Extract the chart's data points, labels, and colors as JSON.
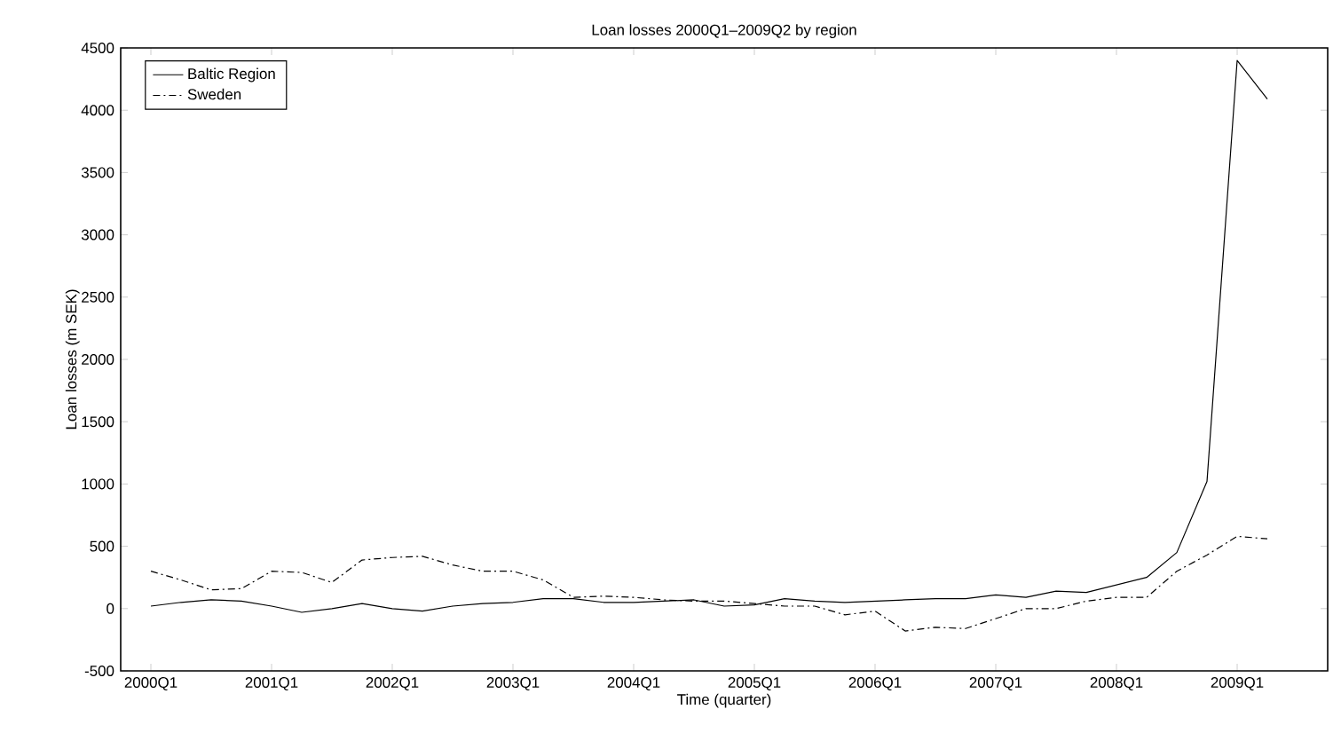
{
  "chart_data": {
    "type": "line",
    "title": "Loan losses 2000Q1–2009Q2 by region",
    "xlabel": "Time (quarter)",
    "ylabel": "Loan losses (m SEK)",
    "categories": [
      "2000Q1",
      null,
      null,
      null,
      "2001Q1",
      null,
      null,
      null,
      "2002Q1",
      null,
      null,
      null,
      "2003Q1",
      null,
      null,
      null,
      "2004Q1",
      null,
      null,
      null,
      "2005Q1",
      null,
      null,
      null,
      "2006Q1",
      null,
      null,
      null,
      "2007Q1",
      null,
      null,
      null,
      "2008Q1",
      null,
      null,
      null,
      "2009Q1",
      null
    ],
    "series": [
      {
        "name": "Baltic Region",
        "color": "#000000",
        "line_style": "solid",
        "values": [
          20,
          50,
          70,
          60,
          20,
          -30,
          0,
          40,
          0,
          -20,
          20,
          40,
          50,
          80,
          80,
          50,
          50,
          60,
          70,
          20,
          30,
          80,
          60,
          50,
          60,
          70,
          80,
          80,
          110,
          90,
          140,
          130,
          190,
          250,
          450,
          1020,
          4400,
          4090
        ]
      },
      {
        "name": "Sweden",
        "color": "#000000",
        "line_style": "dashdot",
        "values": [
          300,
          230,
          150,
          160,
          300,
          290,
          210,
          390,
          410,
          420,
          350,
          300,
          300,
          230,
          90,
          100,
          90,
          70,
          60,
          60,
          40,
          20,
          20,
          -50,
          -20,
          -180,
          -150,
          -160,
          -80,
          0,
          0,
          60,
          90,
          90,
          300,
          430,
          580,
          560
        ]
      }
    ],
    "ylim": [
      -500,
      4500
    ],
    "yticks": [
      -500,
      0,
      500,
      1000,
      1500,
      2000,
      2500,
      3000,
      3500,
      4000,
      4500
    ],
    "grid": false,
    "legend": "top left",
    "marker": "none"
  }
}
